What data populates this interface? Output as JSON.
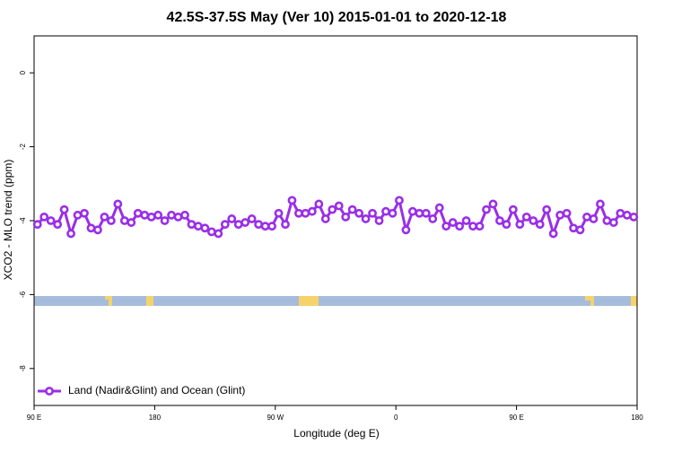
{
  "chart_data": {
    "type": "line",
    "title": "42.5S-37.5S May (Ver 10)   2015-01-01 to 2020-12-18",
    "xlabel": "Longitude (deg E)",
    "ylabel": "XCO2 - MLO trend (ppm)",
    "x": [
      92.5,
      97.5,
      102.5,
      107.5,
      112.5,
      117.5,
      122.5,
      127.5,
      132.5,
      137.5,
      142.5,
      147.5,
      152.5,
      157.5,
      162.5,
      167.5,
      172.5,
      177.5,
      182.5,
      187.5,
      192.5,
      197.5,
      202.5,
      207.5,
      212.5,
      217.5,
      222.5,
      227.5,
      232.5,
      237.5,
      242.5,
      247.5,
      252.5,
      257.5,
      262.5,
      267.5,
      272.5,
      277.5,
      282.5,
      287.5,
      292.5,
      297.5,
      302.5,
      307.5,
      312.5,
      317.5,
      322.5,
      327.5,
      332.5,
      337.5,
      342.5,
      347.5,
      352.5,
      357.5,
      362.5,
      367.5,
      372.5,
      377.5,
      382.5,
      387.5,
      392.5,
      397.5,
      402.5,
      407.5,
      412.5,
      417.5,
      422.5,
      427.5,
      432.5,
      437.5,
      442.5,
      447.5,
      452.5,
      457.5,
      462.5,
      467.5,
      472.5,
      477.5,
      482.5,
      487.5,
      492.5,
      497.5,
      502.5,
      507.5,
      512.5,
      517.5,
      522.5,
      527.5,
      532.5,
      537.5
    ],
    "series": [
      {
        "name": "Land (Nadir&Glint) and Ocean (Glint)",
        "color": "#9a2ee8",
        "values": [
          -4.1,
          -3.9,
          -4.0,
          -4.1,
          -3.7,
          -4.35,
          -3.85,
          -3.8,
          -4.2,
          -4.25,
          -3.9,
          -4.0,
          -3.55,
          -4.0,
          -4.05,
          -3.8,
          -3.85,
          -3.9,
          -3.85,
          -4.0,
          -3.85,
          -3.9,
          -3.85,
          -4.1,
          -4.15,
          -4.2,
          -4.3,
          -4.35,
          -4.1,
          -3.95,
          -4.1,
          -4.05,
          -3.95,
          -4.1,
          -4.15,
          -4.15,
          -3.8,
          -4.1,
          -3.45,
          -3.8,
          -3.8,
          -3.75,
          -3.55,
          -3.95,
          -3.7,
          -3.6,
          -3.9,
          -3.7,
          -3.8,
          -3.95,
          -3.8,
          -4.0,
          -3.75,
          -3.8,
          -3.45,
          -4.25,
          -3.75,
          -3.8,
          -3.8,
          -3.95,
          -3.65,
          -4.15,
          -4.05,
          -4.15,
          -4.0,
          -4.15,
          -4.15,
          -3.7,
          -3.55,
          -4.0,
          -4.1,
          -3.7,
          -4.1,
          -3.9,
          -4.0,
          -4.1,
          -3.7,
          -4.35,
          -3.85,
          -3.8,
          -4.2,
          -4.25,
          -3.9,
          -3.95,
          -3.55,
          -4.0,
          -4.05,
          -3.8,
          -3.85,
          -3.9
        ]
      }
    ],
    "xlim": [
      90,
      540
    ],
    "xticks": [
      {
        "value": 90,
        "label": "90 E"
      },
      180,
      {
        "value": 270,
        "label": "90 W"
      },
      {
        "value": 360,
        "label": "0"
      },
      {
        "value": 450,
        "label": "90 E"
      },
      {
        "value": 540,
        "label": "180"
      }
    ],
    "ylim": [
      -9,
      1
    ],
    "yticks": [
      -8,
      -6,
      -4,
      -2,
      0
    ],
    "legend": "lower left"
  }
}
